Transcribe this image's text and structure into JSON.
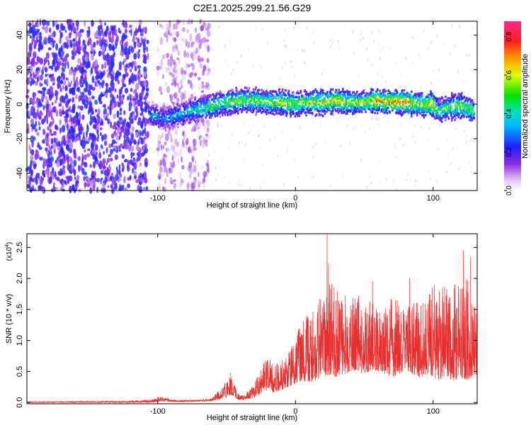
{
  "title": "C2E1.2025.299.21.56.G29",
  "chart_data": [
    {
      "type": "heatmap",
      "xlabel": "Height of straight line (km)",
      "ylabel": "Frequency (Hz)",
      "xlim": [
        -195,
        132
      ],
      "ylim": [
        -50,
        48
      ],
      "x_ticks": [
        -100,
        0,
        100
      ],
      "x_tick_labels": [
        "-100",
        "0",
        "100"
      ],
      "y_ticks": [
        -40,
        -20,
        0,
        20,
        40
      ],
      "y_tick_labels": [
        "-40",
        "-20",
        "0",
        "20",
        "40"
      ],
      "colorbar": {
        "label": "Normalized spectral amplitude",
        "range": [
          0,
          0.88
        ],
        "ticks": [
          0.0,
          0.2,
          0.4,
          0.6,
          0.8
        ],
        "tick_labels": [
          "0.0",
          "0.2",
          "0.4",
          "0.6",
          "0.8"
        ]
      },
      "noise_regions": [
        {
          "x_range": [
            -195,
            -107
          ],
          "level": "dense"
        },
        {
          "x_range": [
            -100,
            -62
          ],
          "level": "sparse"
        }
      ],
      "signal_track": {
        "x": [
          -107,
          -100,
          -95,
          -90,
          -80,
          -70,
          -60,
          -50,
          -40,
          -30,
          -20,
          -10,
          0,
          10,
          20,
          30,
          40,
          50,
          60,
          70,
          80,
          90,
          100,
          104,
          110,
          120,
          130
        ],
        "freq": [
          -6,
          -7,
          -9,
          -7,
          -5,
          -3,
          -1,
          1,
          2,
          2,
          1,
          1,
          0,
          1,
          1,
          2,
          1,
          1,
          2,
          1,
          1,
          0,
          0,
          -4,
          -2,
          -1,
          -4
        ],
        "peak_amplitude": [
          0.3,
          0.35,
          0.3,
          0.35,
          0.4,
          0.45,
          0.5,
          0.5,
          0.55,
          0.55,
          0.55,
          0.6,
          0.55,
          0.6,
          0.6,
          0.65,
          0.6,
          0.6,
          0.7,
          0.7,
          0.75,
          0.6,
          0.65,
          0.45,
          0.55,
          0.6,
          0.5
        ]
      }
    },
    {
      "type": "line",
      "xlabel": "Height of straight line (km)",
      "ylabel": "SNR (10 * v/v)",
      "y_multiplier": "(x10",
      "y_multiplier_exp": "4",
      "y_multiplier_close": ")",
      "xlim": [
        -195,
        132
      ],
      "ylim": [
        -0.02,
        2.72
      ],
      "x_ticks": [
        -100,
        0,
        100
      ],
      "x_tick_labels": [
        "-100",
        "0",
        "100"
      ],
      "y_ticks": [
        0.0,
        0.5,
        1.0,
        1.5,
        2.0,
        2.5
      ],
      "y_tick_labels": [
        "0.0",
        "0.5",
        "1.0",
        "1.5",
        "2.0",
        "2.5"
      ],
      "color": "#e8302f",
      "series": [
        {
          "x": [
            -195,
            -160,
            -120,
            -105,
            -100,
            -97,
            -90,
            -80,
            -70,
            -62,
            -55,
            -50,
            -47,
            -44,
            -42,
            -38,
            -30,
            -25,
            -20,
            -15,
            -10,
            -5,
            0,
            5,
            10,
            15,
            20,
            25,
            30,
            35,
            40,
            45,
            50,
            55,
            60,
            65,
            70,
            75,
            80,
            85,
            90,
            95,
            100,
            105,
            110,
            115,
            120,
            125,
            130
          ],
          "envelope_low": [
            0.0,
            0.0,
            0.0,
            0.0,
            0.01,
            0.02,
            0.01,
            0.01,
            0.02,
            0.02,
            0.05,
            0.08,
            0.12,
            0.1,
            0.05,
            0.04,
            0.08,
            0.15,
            0.2,
            0.15,
            0.2,
            0.25,
            0.3,
            0.35,
            0.3,
            0.35,
            0.4,
            0.45,
            0.4,
            0.45,
            0.5,
            0.5,
            0.45,
            0.5,
            0.5,
            0.45,
            0.4,
            0.45,
            0.5,
            0.45,
            0.4,
            0.45,
            0.4,
            0.35,
            0.4,
            0.35,
            0.4,
            0.35,
            0.45
          ],
          "envelope_high": [
            0.01,
            0.02,
            0.03,
            0.05,
            0.08,
            0.1,
            0.05,
            0.04,
            0.05,
            0.06,
            0.2,
            0.35,
            0.45,
            0.3,
            0.15,
            0.12,
            0.3,
            0.55,
            0.75,
            0.6,
            0.7,
            0.85,
            1.1,
            1.35,
            1.45,
            1.6,
            1.75,
            2.0,
            1.85,
            1.8,
            1.7,
            1.75,
            1.55,
            1.65,
            1.5,
            1.6,
            1.7,
            1.65,
            1.5,
            1.8,
            1.55,
            1.65,
            1.9,
            1.8,
            1.95,
            2.0,
            1.85,
            2.1,
            1.55
          ],
          "spikes": [
            {
              "x": 23,
              "y": 2.72
            },
            {
              "x": 24,
              "y": 2.25
            },
            {
              "x": 56,
              "y": 1.95
            },
            {
              "x": 83,
              "y": 2.0
            },
            {
              "x": 101,
              "y": 1.9
            },
            {
              "x": 122,
              "y": 2.45
            },
            {
              "x": 127,
              "y": 2.35
            },
            {
              "x": -100,
              "y": 0.09
            },
            {
              "x": -47,
              "y": 0.48
            }
          ]
        }
      ]
    }
  ]
}
